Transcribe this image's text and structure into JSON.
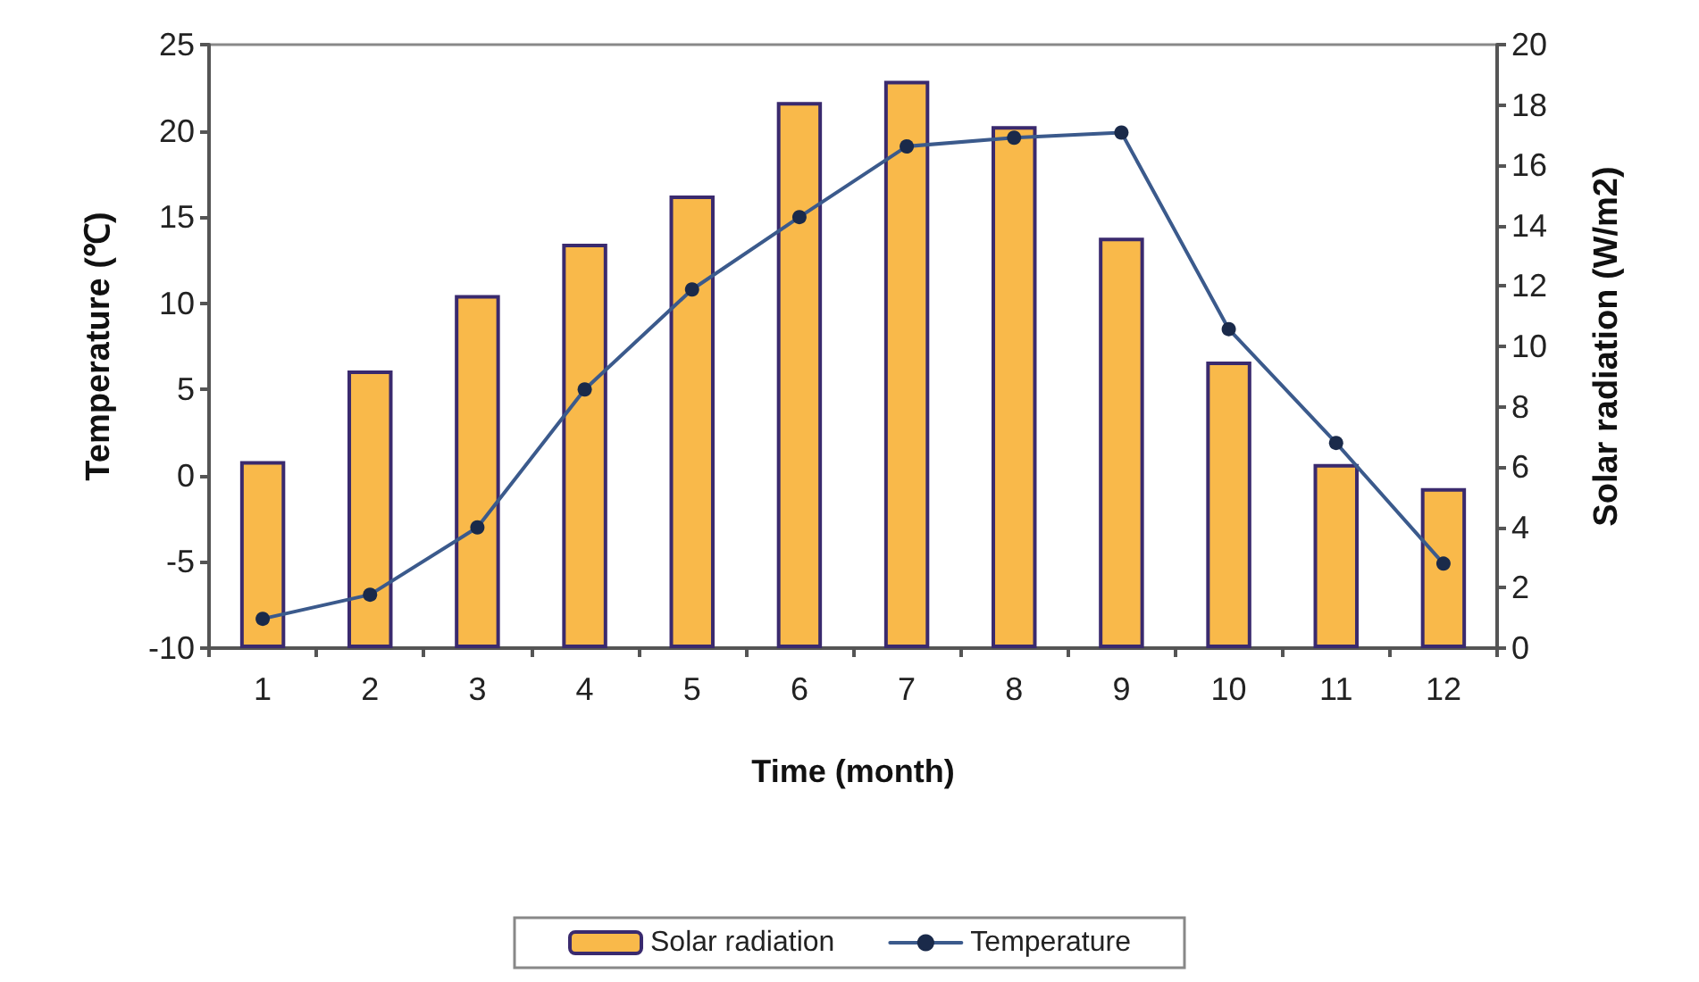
{
  "chart_data": {
    "type": "bar",
    "categories": [
      "1",
      "2",
      "3",
      "4",
      "5",
      "6",
      "7",
      "8",
      "9",
      "10",
      "11",
      "12"
    ],
    "xlabel": "Time (month)",
    "ylabel": "Temperature (℃)",
    "y2label": "Solar radiation (W/m2)",
    "series": [
      {
        "name": "Solar radiation",
        "axis": "y2",
        "color": "#f9b94a",
        "values": [
          6.2,
          9.2,
          11.7,
          13.4,
          15.0,
          18.1,
          18.8,
          17.3,
          13.6,
          9.5,
          6.1,
          5.3
        ]
      },
      {
        "name": "Temperature",
        "type": "line",
        "axis": "y",
        "color": "#3b5a8c",
        "values": [
          -8.3,
          -6.9,
          -3.0,
          5.0,
          10.8,
          15.0,
          19.1,
          19.6,
          19.9,
          8.5,
          1.9,
          -5.1
        ]
      }
    ],
    "ylim": [
      -10,
      25
    ],
    "yticks": [
      -10,
      -5,
      0,
      5,
      10,
      15,
      20,
      25
    ],
    "y2lim": [
      0,
      20
    ],
    "y2ticks": [
      0,
      2,
      4,
      6,
      8,
      10,
      12,
      14,
      16,
      18,
      20
    ],
    "legend": "bottom",
    "marker": "circle",
    "line_style": "solid"
  }
}
